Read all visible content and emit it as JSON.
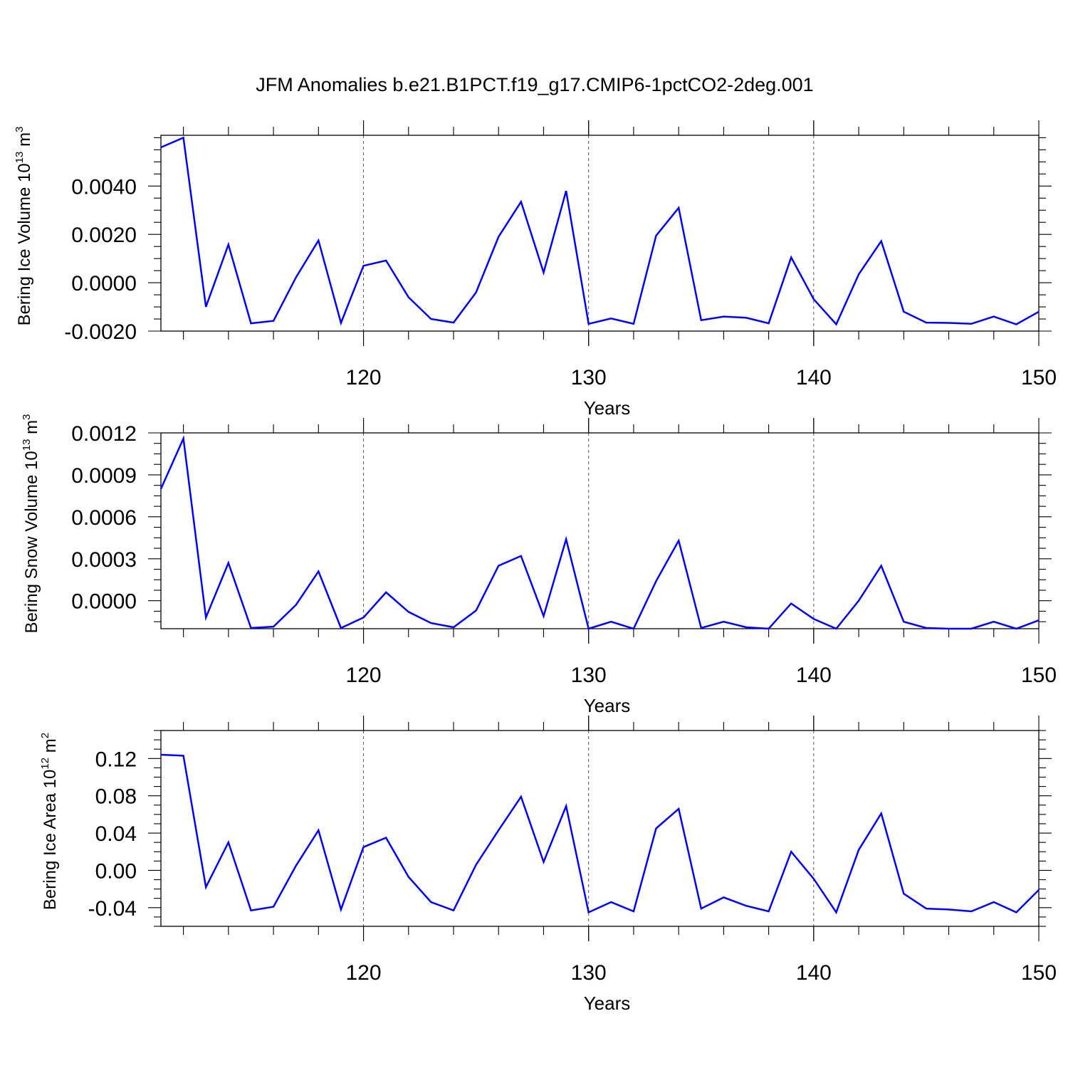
{
  "title": "JFM Anomalies b.e21.B1PCT.f19_g17.CMIP6-1pctCO2-2deg.001",
  "chart_data": [
    {
      "type": "line",
      "ylabel": "Bering Ice Volume 10",
      "ylabel_exp": "13",
      "ylabel_unit": " m",
      "ylabel_unit_exp": "3",
      "xlabel": "Years",
      "xlim": [
        111,
        150
      ],
      "ylim": [
        -0.002,
        0.0061
      ],
      "xticks": [
        120,
        130,
        140,
        150
      ],
      "xtick_labels": [
        "120",
        "130",
        "140",
        "150"
      ],
      "yticks": [
        -0.002,
        0,
        0.002,
        0.004
      ],
      "ytick_labels": [
        "-0.0020",
        "0.0000",
        "0.0020",
        "0.0040"
      ],
      "grid_x": [
        120,
        130,
        140
      ],
      "x": [
        111,
        112,
        113,
        114,
        115,
        116,
        117,
        118,
        119,
        120,
        121,
        122,
        123,
        124,
        125,
        126,
        127,
        128,
        129,
        130,
        131,
        132,
        133,
        134,
        135,
        136,
        137,
        138,
        139,
        140,
        141,
        142,
        143,
        144,
        145,
        146,
        147,
        148,
        149,
        150
      ],
      "series": [
        {
          "color": "#0000ff",
          "values": [
            0.0056,
            0.006,
            -0.001,
            0.00158,
            -0.00168,
            -0.00158,
            0.00022,
            0.00175,
            -0.00166,
            0.0007,
            0.00092,
            -0.0006,
            -0.0015,
            -0.00165,
            -0.0004,
            0.0019,
            0.00335,
            0.00042,
            0.0038,
            -0.0017,
            -0.00148,
            -0.0017,
            0.00195,
            0.0031,
            -0.00155,
            -0.0014,
            -0.00145,
            -0.00168,
            0.00105,
            -0.00068,
            -0.00172,
            0.00035,
            0.00172,
            -0.0012,
            -0.00165,
            -0.00166,
            -0.0017,
            -0.0014,
            -0.00172,
            -0.0012
          ]
        }
      ]
    },
    {
      "type": "line",
      "ylabel": "Bering Snow Volume 10",
      "ylabel_exp": "13",
      "ylabel_unit": " m",
      "ylabel_unit_exp": "3",
      "xlabel": "Years",
      "xlim": [
        111,
        150
      ],
      "ylim": [
        -0.0002,
        0.0012
      ],
      "xticks": [
        120,
        130,
        140,
        150
      ],
      "xtick_labels": [
        "120",
        "130",
        "140",
        "150"
      ],
      "yticks": [
        0,
        0.0003,
        0.0006,
        0.0009,
        0.0012
      ],
      "ytick_labels": [
        "0.0000",
        "0.0003",
        "0.0006",
        "0.0009",
        "0.0012"
      ],
      "grid_x": [
        120,
        130,
        140
      ],
      "x": [
        111,
        112,
        113,
        114,
        115,
        116,
        117,
        118,
        119,
        120,
        121,
        122,
        123,
        124,
        125,
        126,
        127,
        128,
        129,
        130,
        131,
        132,
        133,
        134,
        135,
        136,
        137,
        138,
        139,
        140,
        141,
        142,
        143,
        144,
        145,
        146,
        147,
        148,
        149,
        150
      ],
      "series": [
        {
          "color": "#0000ff",
          "values": [
            0.0008,
            0.00116,
            -0.00012,
            0.00027,
            -0.000195,
            -0.000185,
            -3e-05,
            0.00021,
            -0.000195,
            -0.00012,
            6e-05,
            -8e-05,
            -0.00016,
            -0.00019,
            -7e-05,
            0.00025,
            0.00032,
            -0.00011,
            0.00044,
            -0.0002,
            -0.00015,
            -0.0002,
            0.00014,
            0.00043,
            -0.000195,
            -0.00015,
            -0.00019,
            -0.0002,
            -2e-05,
            -0.00013,
            -0.0002,
            0,
            0.00025,
            -0.00015,
            -0.000195,
            -0.0002,
            -0.0002,
            -0.00015,
            -0.0002,
            -0.00014
          ]
        }
      ]
    },
    {
      "type": "line",
      "ylabel": "Bering Ice Area 10",
      "ylabel_exp": "12",
      "ylabel_unit": " m",
      "ylabel_unit_exp": "2",
      "xlabel": "Years",
      "xlim": [
        111,
        150
      ],
      "ylim": [
        -0.06,
        0.15
      ],
      "xticks": [
        120,
        130,
        140,
        150
      ],
      "xtick_labels": [
        "120",
        "130",
        "140",
        "150"
      ],
      "yticks": [
        -0.04,
        0,
        0.04,
        0.08,
        0.12
      ],
      "ytick_labels": [
        "-0.04",
        "0.00",
        "0.04",
        "0.08",
        "0.12"
      ],
      "grid_x": [
        120,
        130,
        140
      ],
      "x": [
        111,
        112,
        113,
        114,
        115,
        116,
        117,
        118,
        119,
        120,
        121,
        122,
        123,
        124,
        125,
        126,
        127,
        128,
        129,
        130,
        131,
        132,
        133,
        134,
        135,
        136,
        137,
        138,
        139,
        140,
        141,
        142,
        143,
        144,
        145,
        146,
        147,
        148,
        149,
        150
      ],
      "series": [
        {
          "color": "#0000ff",
          "values": [
            0.124,
            0.123,
            -0.018,
            0.03,
            -0.043,
            -0.039,
            0.005,
            0.043,
            -0.042,
            0.025,
            0.035,
            -0.007,
            -0.034,
            -0.043,
            0.006,
            0.043,
            0.079,
            0.009,
            0.069,
            -0.045,
            -0.034,
            -0.044,
            0.045,
            0.066,
            -0.041,
            -0.029,
            -0.038,
            -0.044,
            0.02,
            -0.009,
            -0.045,
            0.022,
            0.061,
            -0.025,
            -0.041,
            -0.042,
            -0.044,
            -0.034,
            -0.045,
            -0.021
          ]
        }
      ]
    }
  ]
}
